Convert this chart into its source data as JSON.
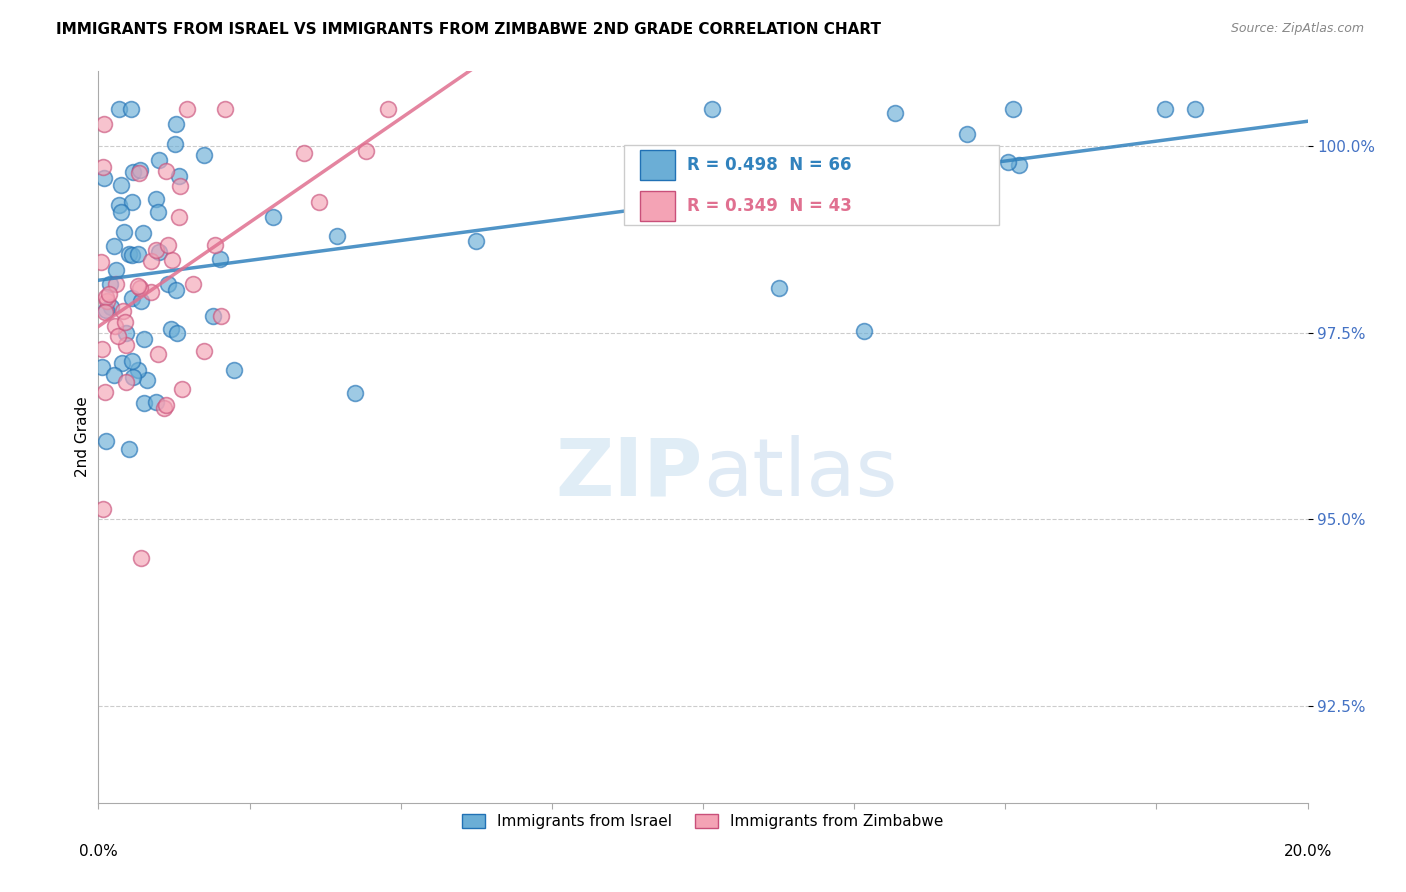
{
  "title": "IMMIGRANTS FROM ISRAEL VS IMMIGRANTS FROM ZIMBABWE 2ND GRADE CORRELATION CHART",
  "source": "Source: ZipAtlas.com",
  "ylabel": "2nd Grade",
  "yticks": [
    92.5,
    95.0,
    97.5,
    100.0
  ],
  "ytick_labels": [
    "92.5%",
    "95.0%",
    "97.5%",
    "100.0%"
  ],
  "xlim": [
    0.0,
    20.0
  ],
  "ylim": [
    91.2,
    101.0
  ],
  "legend_israel": "Immigrants from Israel",
  "legend_zimbabwe": "Immigrants from Zimbabwe",
  "R_israel": 0.498,
  "N_israel": 66,
  "R_zimbabwe": 0.349,
  "N_zimbabwe": 43,
  "color_israel": "#6baed6",
  "color_zimbabwe": "#f4a3b5",
  "color_israel_line": "#3182bd",
  "color_zimbabwe_line": "#e07090",
  "color_israel_edge": "#2171b5",
  "color_zimbabwe_edge": "#c9507a"
}
